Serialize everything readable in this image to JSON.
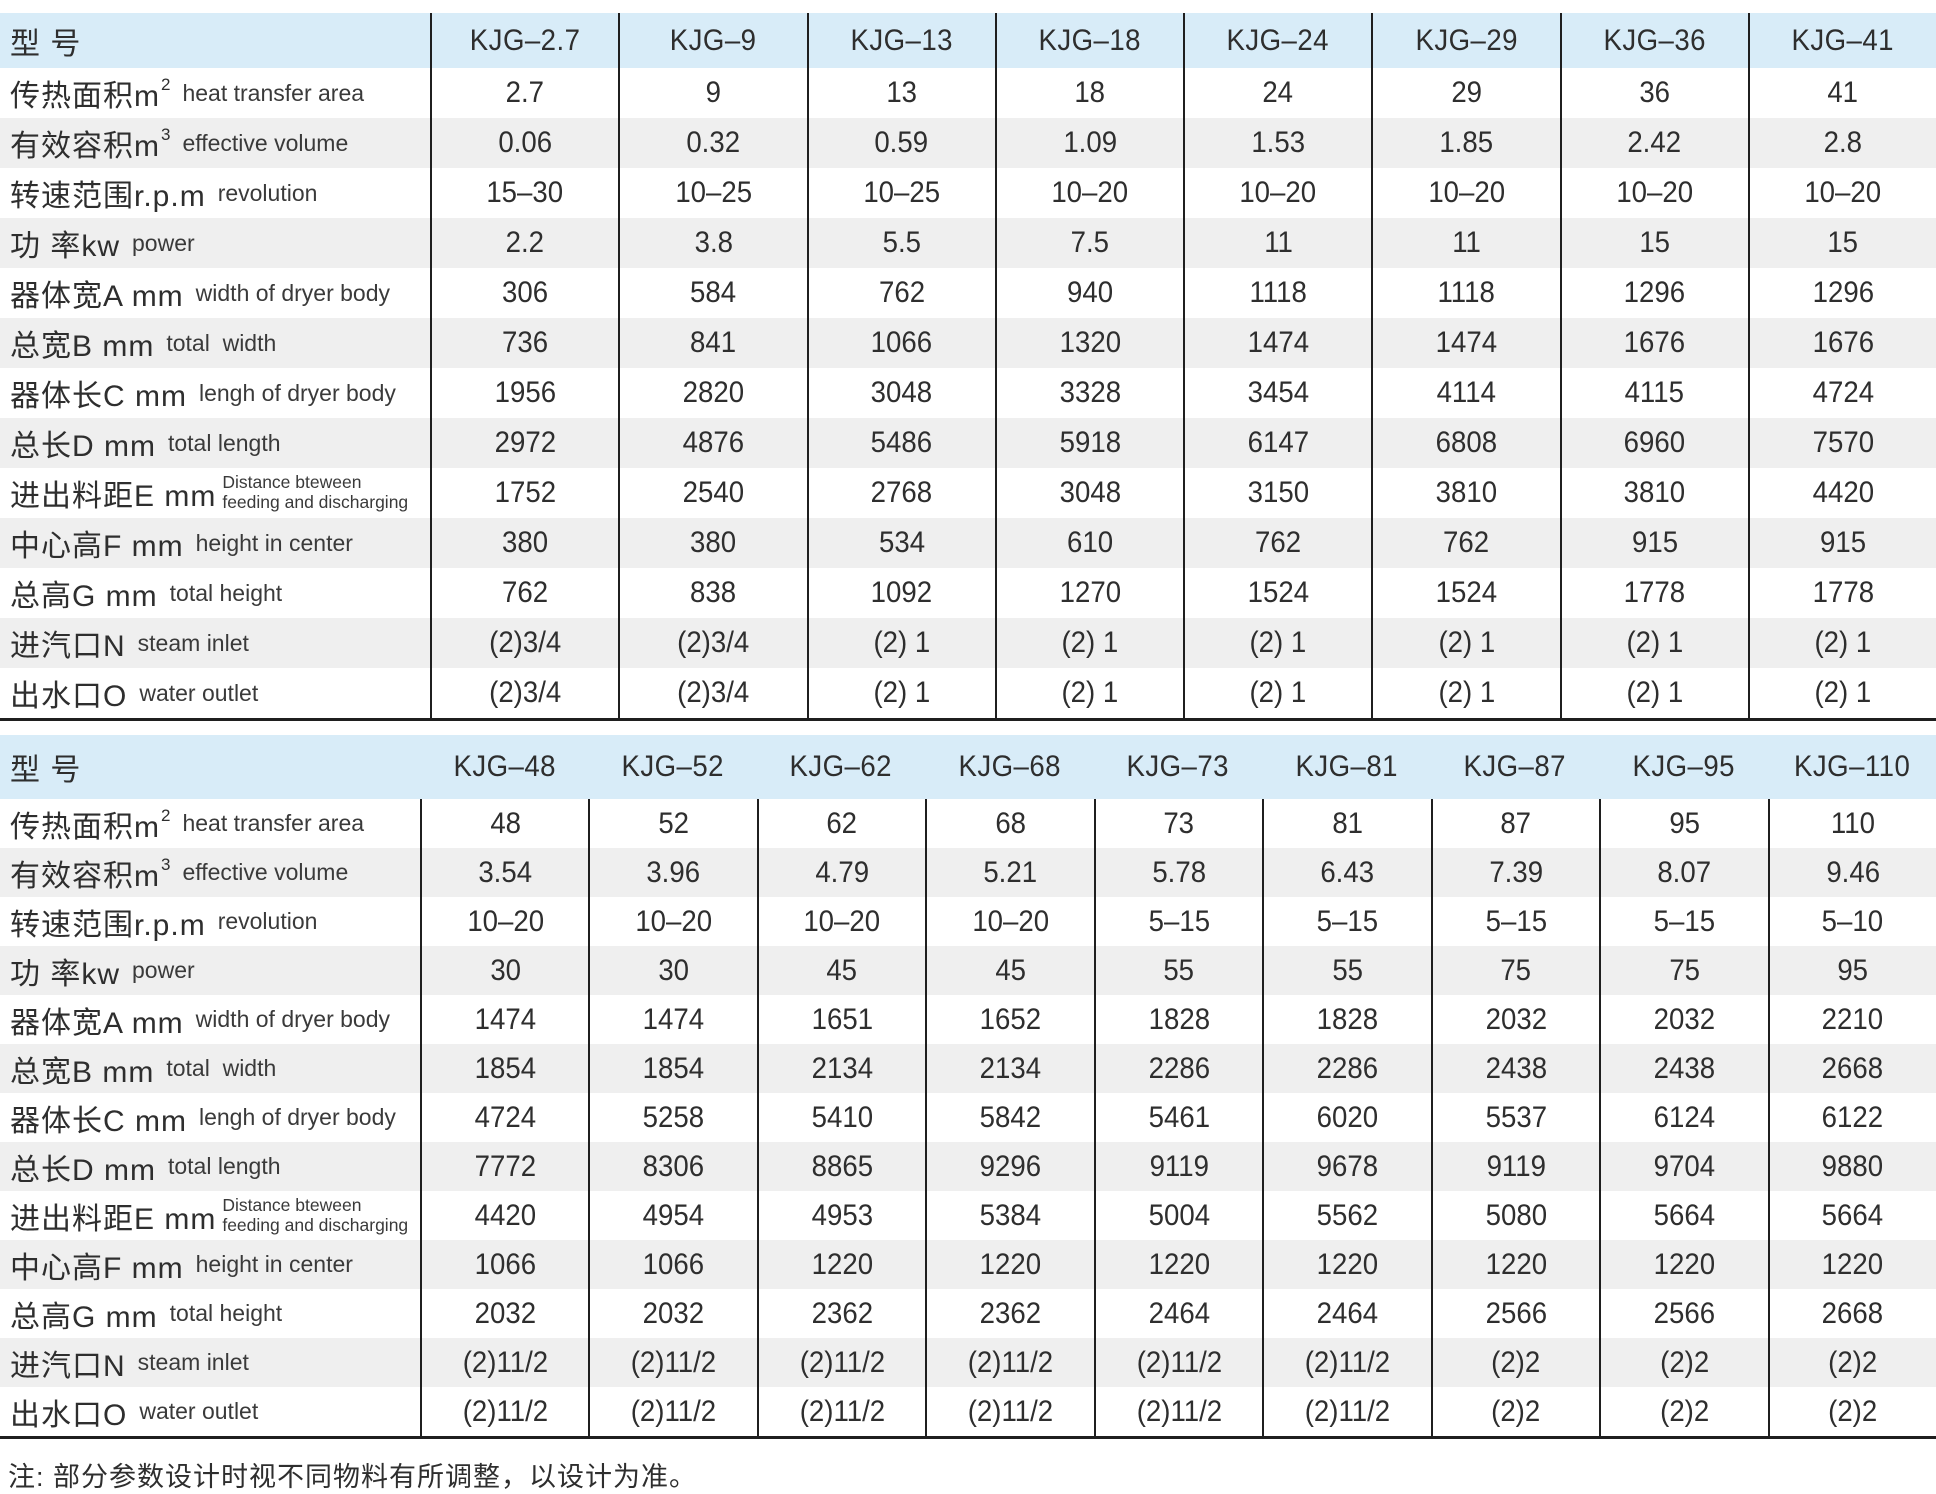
{
  "header_label": "型 号",
  "note": "注: 部分参数设计时视不同物料有所调整，以设计为准。",
  "colors": {
    "header_blue": "#d8ecf8",
    "stripe_gray": "#efefef",
    "rule_black": "#1f1f1f",
    "text": "#2e2e2e"
  },
  "row_labels": [
    {
      "zh": "传热面积m",
      "sup": "2",
      "en": "heat transfer area",
      "en2": ""
    },
    {
      "zh": "有效容积m",
      "sup": "3",
      "en": "effective volume",
      "en2": ""
    },
    {
      "zh": "转速范围r.p.m",
      "sup": "",
      "en": "revolution",
      "en2": ""
    },
    {
      "zh": "功 率kw",
      "sup": "",
      "en": "power",
      "en2": ""
    },
    {
      "zh": "器体宽A mm",
      "sup": "",
      "en": "width of dryer body",
      "en2": ""
    },
    {
      "zh": "总宽B mm",
      "sup": "",
      "en": "total  width",
      "en2": ""
    },
    {
      "zh": "器体长C mm",
      "sup": "",
      "en": "lengh of dryer body",
      "en2": ""
    },
    {
      "zh": "总长D mm",
      "sup": "",
      "en": "total length",
      "en2": ""
    },
    {
      "zh": "进出料距E mm",
      "sup": "",
      "en": "Distance bteween",
      "en2": "feeding and discharging"
    },
    {
      "zh": "中心高F mm",
      "sup": "",
      "en": "height in center",
      "en2": ""
    },
    {
      "zh": "总高G mm",
      "sup": "",
      "en": "total height",
      "en2": ""
    },
    {
      "zh": "进汽口N",
      "sup": "",
      "en": "steam inlet",
      "en2": ""
    },
    {
      "zh": "出水口O",
      "sup": "",
      "en": "water outlet",
      "en2": ""
    }
  ],
  "tables": [
    {
      "models": [
        "KJG–2.7",
        "KJG–9",
        "KJG–13",
        "KJG–18",
        "KJG–24",
        "KJG–29",
        "KJG–36",
        "KJG–41"
      ],
      "rows": [
        [
          "2.7",
          "9",
          "13",
          "18",
          "24",
          "29",
          "36",
          "41"
        ],
        [
          "0.06",
          "0.32",
          "0.59",
          "1.09",
          "1.53",
          "1.85",
          "2.42",
          "2.8"
        ],
        [
          "15–30",
          "10–25",
          "10–25",
          "10–20",
          "10–20",
          "10–20",
          "10–20",
          "10–20"
        ],
        [
          "2.2",
          "3.8",
          "5.5",
          "7.5",
          "11",
          "11",
          "15",
          "15"
        ],
        [
          "306",
          "584",
          "762",
          "940",
          "1118",
          "1118",
          "1296",
          "1296"
        ],
        [
          "736",
          "841",
          "1066",
          "1320",
          "1474",
          "1474",
          "1676",
          "1676"
        ],
        [
          "1956",
          "2820",
          "3048",
          "3328",
          "3454",
          "4114",
          "4115",
          "4724"
        ],
        [
          "2972",
          "4876",
          "5486",
          "5918",
          "6147",
          "6808",
          "6960",
          "7570"
        ],
        [
          "1752",
          "2540",
          "2768",
          "3048",
          "3150",
          "3810",
          "3810",
          "4420"
        ],
        [
          "380",
          "380",
          "534",
          "610",
          "762",
          "762",
          "915",
          "915"
        ],
        [
          "762",
          "838",
          "1092",
          "1270",
          "1524",
          "1524",
          "1778",
          "1778"
        ],
        [
          "(2)3/4",
          "(2)3/4",
          "(2) 1",
          "(2) 1",
          "(2) 1",
          "(2) 1",
          "(2) 1",
          "(2) 1"
        ],
        [
          "(2)3/4",
          "(2)3/4",
          "(2) 1",
          "(2) 1",
          "(2) 1",
          "(2) 1",
          "(2) 1",
          "(2) 1"
        ]
      ]
    },
    {
      "models": [
        "KJG–48",
        "KJG–52",
        "KJG–62",
        "KJG–68",
        "KJG–73",
        "KJG–81",
        "KJG–87",
        "KJG–95",
        "KJG–110"
      ],
      "rows": [
        [
          "48",
          "52",
          "62",
          "68",
          "73",
          "81",
          "87",
          "95",
          "110"
        ],
        [
          "3.54",
          "3.96",
          "4.79",
          "5.21",
          "5.78",
          "6.43",
          "7.39",
          "8.07",
          "9.46"
        ],
        [
          "10–20",
          "10–20",
          "10–20",
          "10–20",
          "5–15",
          "5–15",
          "5–15",
          "5–15",
          "5–10"
        ],
        [
          "30",
          "30",
          "45",
          "45",
          "55",
          "55",
          "75",
          "75",
          "95"
        ],
        [
          "1474",
          "1474",
          "1651",
          "1652",
          "1828",
          "1828",
          "2032",
          "2032",
          "2210"
        ],
        [
          "1854",
          "1854",
          "2134",
          "2134",
          "2286",
          "2286",
          "2438",
          "2438",
          "2668"
        ],
        [
          "4724",
          "5258",
          "5410",
          "5842",
          "5461",
          "6020",
          "5537",
          "6124",
          "6122"
        ],
        [
          "7772",
          "8306",
          "8865",
          "9296",
          "9119",
          "9678",
          "9119",
          "9704",
          "9880"
        ],
        [
          "4420",
          "4954",
          "4953",
          "5384",
          "5004",
          "5562",
          "5080",
          "5664",
          "5664"
        ],
        [
          "1066",
          "1066",
          "1220",
          "1220",
          "1220",
          "1220",
          "1220",
          "1220",
          "1220"
        ],
        [
          "2032",
          "2032",
          "2362",
          "2362",
          "2464",
          "2464",
          "2566",
          "2566",
          "2668"
        ],
        [
          "(2)11/2",
          "(2)11/2",
          "(2)11/2",
          "(2)11/2",
          "(2)11/2",
          "(2)11/2",
          "(2)2",
          "(2)2",
          "(2)2"
        ],
        [
          "(2)11/2",
          "(2)11/2",
          "(2)11/2",
          "(2)11/2",
          "(2)11/2",
          "(2)11/2",
          "(2)2",
          "(2)2",
          "(2)2"
        ]
      ]
    }
  ]
}
